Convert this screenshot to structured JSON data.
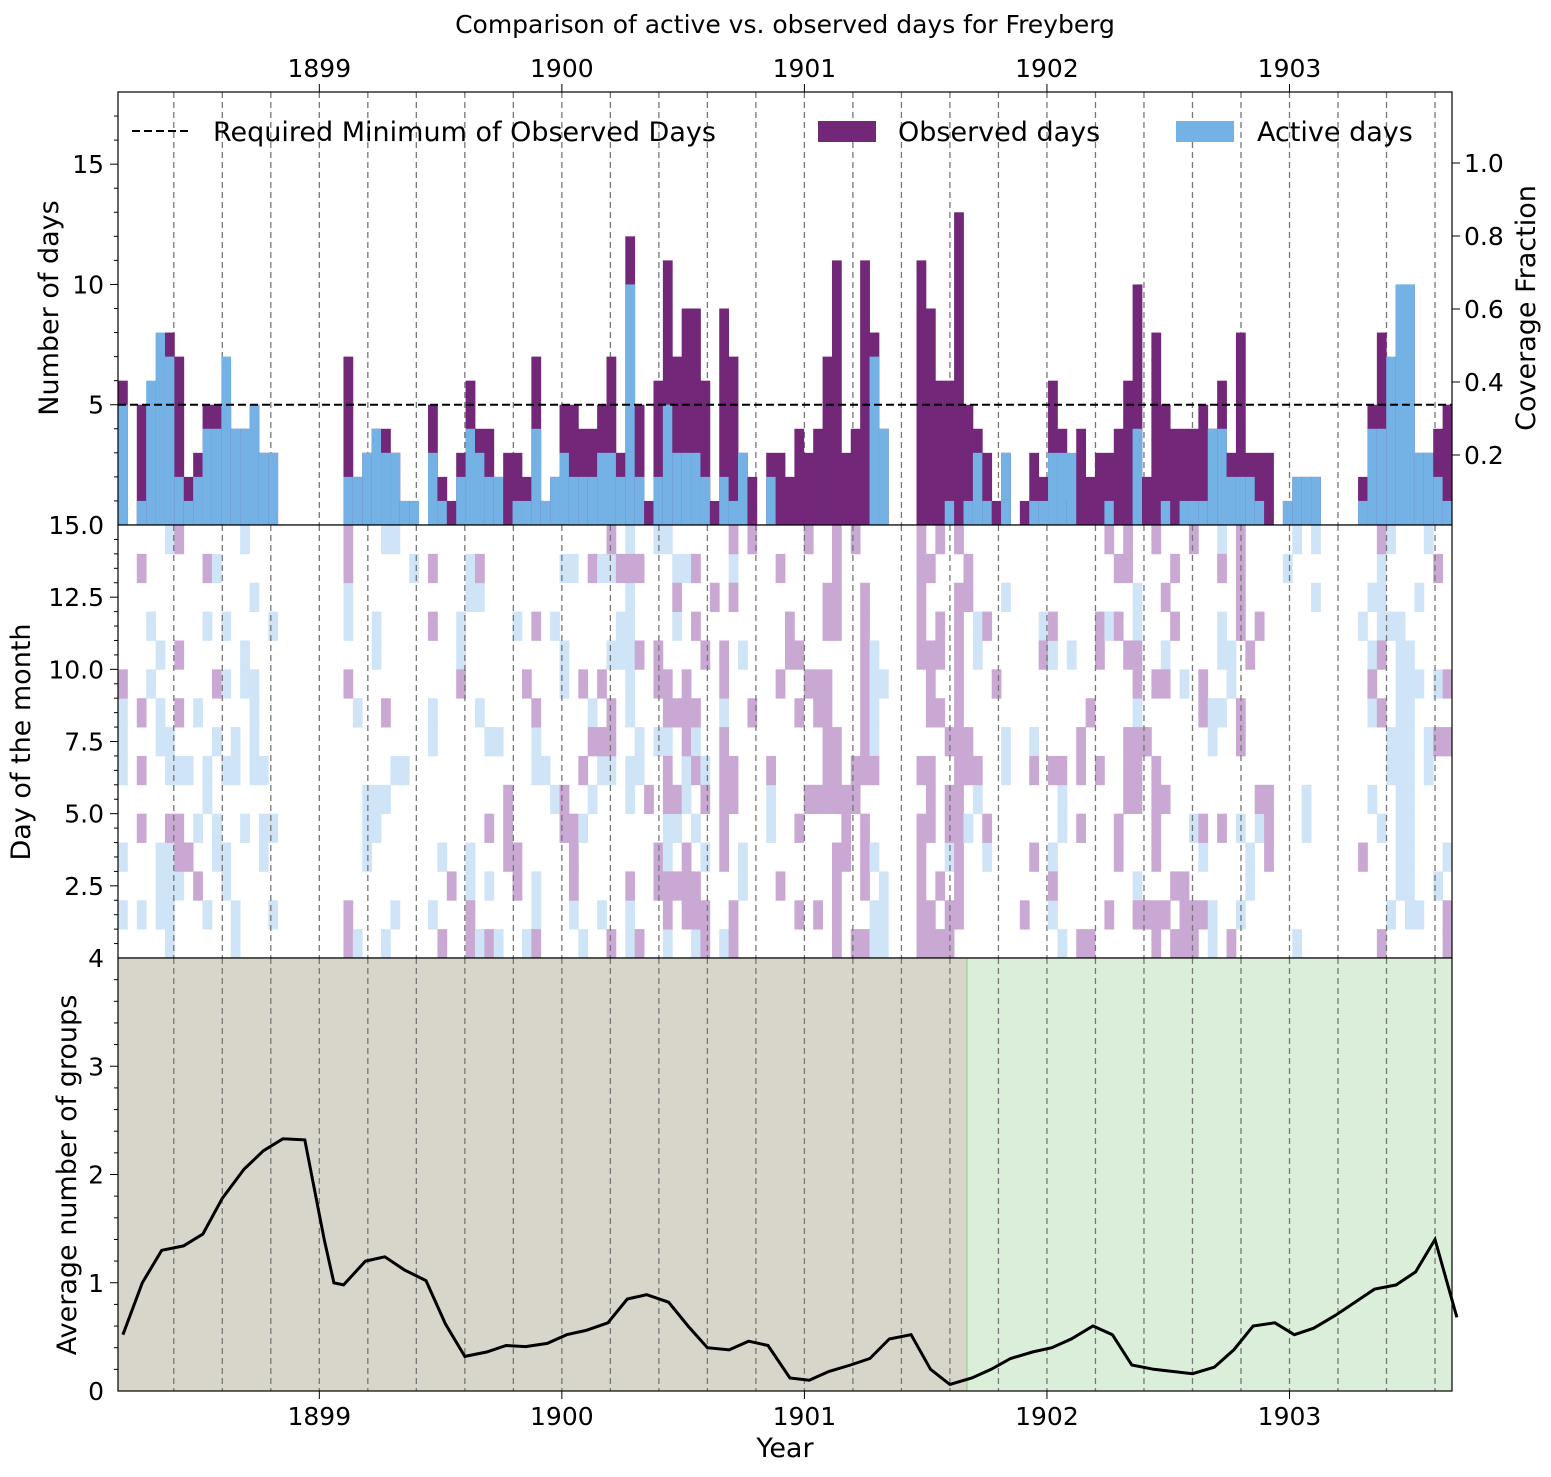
{
  "chart_data": [
    {
      "type": "bar",
      "title": "Comparison of active vs. observed days for Freyberg",
      "ylabel": "Number of days",
      "ylabel_right": "Coverage Fraction",
      "ylim": [
        0,
        18
      ],
      "yticks": [
        5,
        10,
        15
      ],
      "yticks_right": [
        "0.2",
        "0.4",
        "0.6",
        "0.8",
        "1.0"
      ],
      "xlim": [
        1898.17,
        1903.67
      ],
      "xticks": [
        1899,
        1900,
        1901,
        1902,
        1903
      ],
      "threshold": 5,
      "legend": {
        "placement": "top",
        "entries": [
          "Required Minimum of Observed Days",
          "Observed days",
          "Active days"
        ]
      },
      "colors": {
        "observed": "#722779",
        "active": "#74b2e6",
        "threshold": "#000000"
      },
      "month_start": 1898.167,
      "series": [
        {
          "name": "Observed days",
          "values": [
            6,
            0,
            5,
            2,
            6,
            8,
            7,
            2,
            3,
            5,
            5,
            5,
            4,
            4,
            5,
            3,
            3,
            0,
            0,
            0,
            0,
            0,
            0,
            0,
            7,
            2,
            3,
            4,
            4,
            3,
            1,
            1,
            0,
            5,
            2,
            1,
            3,
            6,
            4,
            4,
            2,
            3,
            3,
            2,
            7,
            1,
            2,
            5,
            5,
            4,
            4,
            5,
            7,
            3,
            12,
            5,
            1,
            6,
            11,
            7,
            9,
            9,
            6,
            1,
            9,
            7,
            3,
            2,
            0,
            3,
            3,
            2,
            4,
            3,
            4,
            7,
            11,
            3,
            4,
            11,
            8,
            4,
            0,
            0,
            0,
            11,
            9,
            6,
            6,
            13,
            5,
            4,
            3,
            1,
            3,
            0,
            1,
            3,
            2,
            6,
            4,
            1,
            4,
            2,
            3,
            3,
            4,
            6,
            10,
            2,
            8,
            5,
            4,
            4,
            4,
            5,
            4,
            6,
            3,
            8,
            3,
            3,
            3,
            0,
            1,
            2,
            2,
            2,
            0,
            0,
            0,
            0,
            2,
            5,
            8,
            5,
            10,
            10,
            3,
            3,
            4,
            5
          ]
        },
        {
          "name": "Active days",
          "values": [
            5,
            0,
            1,
            6,
            8,
            7,
            2,
            1,
            2,
            4,
            4,
            7,
            4,
            4,
            5,
            3,
            3,
            0,
            0,
            0,
            0,
            0,
            0,
            0,
            2,
            2,
            3,
            4,
            3,
            3,
            1,
            1,
            0,
            3,
            1,
            0,
            2,
            4,
            3,
            2,
            2,
            0,
            1,
            1,
            4,
            1,
            2,
            3,
            2,
            2,
            2,
            3,
            3,
            2,
            10,
            2,
            0,
            2,
            5,
            3,
            3,
            3,
            2,
            0,
            2,
            1,
            3,
            0,
            0,
            2,
            0,
            0,
            0,
            0,
            0,
            0,
            0,
            0,
            0,
            0,
            7,
            4,
            0,
            0,
            0,
            0,
            0,
            0,
            1,
            0,
            1,
            3,
            1,
            0,
            3,
            0,
            0,
            1,
            1,
            3,
            3,
            3,
            0,
            0,
            0,
            1,
            0,
            0,
            4,
            0,
            0,
            1,
            0,
            1,
            1,
            1,
            4,
            4,
            2,
            2,
            2,
            1,
            0,
            0,
            1,
            2,
            2,
            2,
            0,
            0,
            0,
            0,
            1,
            4,
            4,
            7,
            10,
            10,
            3,
            3,
            2,
            1
          ]
        }
      ]
    },
    {
      "type": "heatmap",
      "ylabel": "Day of the month",
      "ylim": [
        0,
        15
      ],
      "yticks": [
        "2.5",
        "5.0",
        "7.5",
        "10.0",
        "12.5",
        "15.0"
      ],
      "colors": {
        "observed": "#c9a9d3",
        "active": "#cfe4f6"
      }
    },
    {
      "type": "line",
      "xlabel": "Year",
      "ylabel": "Average number of groups",
      "ylim": [
        0,
        4
      ],
      "yticks": [
        0,
        1,
        2,
        3,
        4
      ],
      "xticks": [
        1899,
        1900,
        1901,
        1902,
        1903
      ],
      "split_x": 1901.67,
      "colors": {
        "line": "#000000",
        "left_region": "#d8d6ca",
        "right_region": "#dbeed9",
        "split_line": "#a9cfa4"
      },
      "x": [
        1898.17,
        1898.25,
        1898.33,
        1898.42,
        1898.5,
        1898.58,
        1898.67,
        1898.75,
        1898.83,
        1898.92,
        1899.0,
        1899.04,
        1899.08,
        1899.17,
        1899.25,
        1899.33,
        1899.42,
        1899.5,
        1899.58,
        1899.67,
        1899.75,
        1899.83,
        1899.92,
        1900.0,
        1900.08,
        1900.17,
        1900.25,
        1900.33,
        1900.42,
        1900.5,
        1900.58,
        1900.67,
        1900.75,
        1900.83,
        1900.92,
        1901.0,
        1901.08,
        1901.17,
        1901.25,
        1901.33,
        1901.42,
        1901.5,
        1901.58,
        1901.67,
        1901.75,
        1901.83,
        1901.92,
        1902.0,
        1902.08,
        1902.17,
        1902.25,
        1902.33,
        1902.42,
        1902.5,
        1902.58,
        1902.67,
        1902.75,
        1902.83,
        1902.92,
        1903.0,
        1903.08,
        1903.17,
        1903.25,
        1903.33,
        1903.42,
        1903.5,
        1903.58,
        1903.67
      ],
      "values": [
        0.52,
        1.0,
        1.3,
        1.34,
        1.45,
        1.78,
        2.05,
        2.22,
        2.33,
        2.32,
        1.4,
        1.0,
        0.98,
        1.2,
        1.24,
        1.12,
        1.02,
        0.62,
        0.32,
        0.36,
        0.42,
        0.41,
        0.44,
        0.52,
        0.56,
        0.63,
        0.85,
        0.89,
        0.82,
        0.6,
        0.4,
        0.38,
        0.46,
        0.42,
        0.12,
        0.1,
        0.18,
        0.24,
        0.3,
        0.48,
        0.52,
        0.2,
        0.06,
        0.12,
        0.2,
        0.3,
        0.36,
        0.4,
        0.48,
        0.6,
        0.52,
        0.24,
        0.2,
        0.18,
        0.16,
        0.22,
        0.38,
        0.6,
        0.63,
        0.52,
        0.58,
        0.7,
        0.82,
        0.94,
        0.98,
        1.1,
        1.4,
        0.68
      ]
    }
  ]
}
